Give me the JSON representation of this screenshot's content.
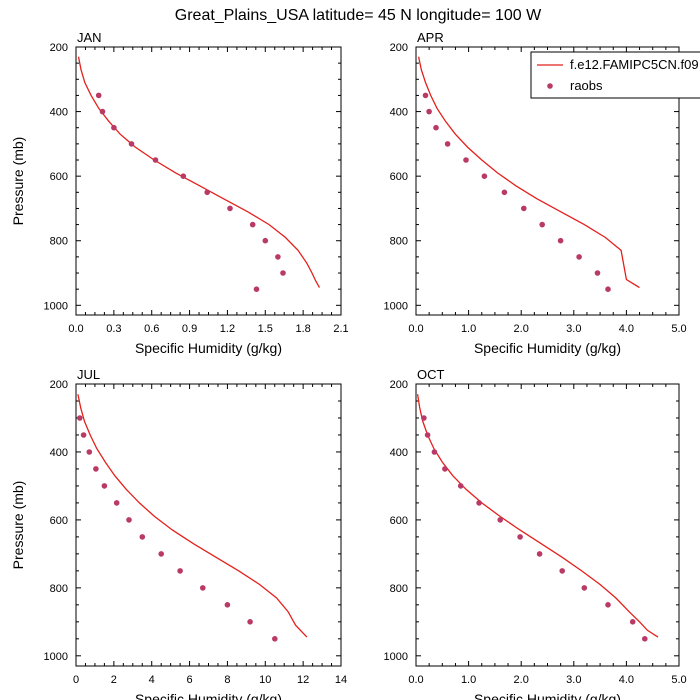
{
  "figure": {
    "title": "Great_Plains_USA  latitude= 45 N longitude= 100 W"
  },
  "legend": {
    "model_label": "f.e12.FAMIPC5CN.f09",
    "obs_label": "raobs",
    "placement": "top-right of APR panel"
  },
  "colors": {
    "model_line": "#e4201c",
    "obs_marker": "#b93a66",
    "axis": "#000000"
  },
  "chart_data": [
    {
      "type": "line",
      "panel": "JAN",
      "xlabel": "Specific Humidity (g/kg)",
      "ylabel": "Pressure (mb)",
      "xlim": [
        0,
        2.1
      ],
      "ylim": [
        1030,
        200
      ],
      "xticks": [
        "0.0",
        "0.3",
        "0.6",
        "0.9",
        "1.2",
        "1.5",
        "1.8",
        "2.1"
      ],
      "yticks": [
        "200",
        "400",
        "600",
        "800",
        "1000"
      ],
      "series": [
        {
          "name": "f.e12.FAMIPC5CN.f09",
          "kind": "line",
          "x": [
            0.02,
            0.04,
            0.07,
            0.12,
            0.18,
            0.26,
            0.35,
            0.47,
            0.62,
            0.79,
            0.98,
            1.17,
            1.36,
            1.53,
            1.66,
            1.76,
            1.83,
            1.87,
            1.9,
            1.93
          ],
          "y": [
            230,
            270,
            310,
            350,
            390,
            430,
            470,
            510,
            550,
            590,
            630,
            670,
            710,
            750,
            790,
            830,
            870,
            900,
            925,
            945
          ]
        },
        {
          "name": "raobs",
          "kind": "markers",
          "x": [
            0.18,
            0.21,
            0.3,
            0.44,
            0.63,
            0.85,
            1.04,
            1.22,
            1.4,
            1.5,
            1.6,
            1.64,
            1.43
          ],
          "y": [
            350,
            400,
            450,
            500,
            550,
            600,
            650,
            700,
            750,
            800,
            850,
            900,
            950
          ]
        }
      ]
    },
    {
      "type": "line",
      "panel": "APR",
      "xlabel": "Specific Humidity (g/kg)",
      "ylabel": "",
      "xlim": [
        0,
        5.0
      ],
      "ylim": [
        1030,
        200
      ],
      "xticks": [
        "0.0",
        "1.0",
        "2.0",
        "3.0",
        "4.0",
        "5.0"
      ],
      "yticks": [
        "200",
        "400",
        "600",
        "800",
        "1000"
      ],
      "series": [
        {
          "name": "f.e12.FAMIPC5CN.f09",
          "kind": "line",
          "x": [
            0.05,
            0.1,
            0.18,
            0.28,
            0.4,
            0.56,
            0.75,
            0.98,
            1.25,
            1.55,
            1.9,
            2.3,
            2.75,
            3.2,
            3.6,
            3.9,
            4.0,
            4.25
          ],
          "y": [
            230,
            270,
            310,
            350,
            390,
            430,
            470,
            510,
            550,
            590,
            630,
            670,
            710,
            750,
            790,
            830,
            920,
            945
          ]
        },
        {
          "name": "raobs",
          "kind": "markers",
          "x": [
            0.18,
            0.25,
            0.38,
            0.6,
            0.95,
            1.3,
            1.68,
            2.05,
            2.4,
            2.75,
            3.1,
            3.45,
            3.65
          ],
          "y": [
            350,
            400,
            450,
            500,
            550,
            600,
            650,
            700,
            750,
            800,
            850,
            900,
            950
          ]
        }
      ]
    },
    {
      "type": "line",
      "panel": "JUL",
      "xlabel": "Specific Humidity (g/kg)",
      "ylabel": "Pressure (mb)",
      "xlim": [
        0,
        14
      ],
      "ylim": [
        1030,
        200
      ],
      "xticks": [
        "0",
        "2",
        "4",
        "6",
        "8",
        "10",
        "12",
        "14"
      ],
      "yticks": [
        "200",
        "400",
        "600",
        "800",
        "1000"
      ],
      "series": [
        {
          "name": "f.e12.FAMIPC5CN.f09",
          "kind": "line",
          "x": [
            0.1,
            0.25,
            0.45,
            0.75,
            1.1,
            1.55,
            2.05,
            2.65,
            3.35,
            4.15,
            5.1,
            6.2,
            7.4,
            8.6,
            9.7,
            10.6,
            11.2,
            11.6,
            12.2
          ],
          "y": [
            230,
            270,
            310,
            350,
            390,
            430,
            470,
            510,
            550,
            590,
            630,
            670,
            710,
            750,
            790,
            830,
            870,
            910,
            945
          ]
        },
        {
          "name": "raobs",
          "kind": "markers",
          "x": [
            0.2,
            0.4,
            0.7,
            1.05,
            1.5,
            2.15,
            2.8,
            3.5,
            4.5,
            5.5,
            6.7,
            8.0,
            9.2,
            10.5
          ],
          "y": [
            300,
            350,
            400,
            450,
            500,
            550,
            600,
            650,
            700,
            750,
            800,
            850,
            900,
            950
          ]
        }
      ]
    },
    {
      "type": "line",
      "panel": "OCT",
      "xlabel": "Specific Humidity (g/kg)",
      "ylabel": "",
      "xlim": [
        0,
        5.0
      ],
      "ylim": [
        1030,
        200
      ],
      "xticks": [
        "0.0",
        "1.0",
        "2.0",
        "3.0",
        "4.0",
        "5.0"
      ],
      "yticks": [
        "200",
        "400",
        "600",
        "800",
        "1000"
      ],
      "series": [
        {
          "name": "f.e12.FAMIPC5CN.f09",
          "kind": "line",
          "x": [
            0.03,
            0.07,
            0.13,
            0.22,
            0.34,
            0.5,
            0.7,
            0.95,
            1.25,
            1.6,
            1.98,
            2.38,
            2.78,
            3.15,
            3.5,
            3.8,
            4.05,
            4.25,
            4.4,
            4.6
          ],
          "y": [
            230,
            270,
            310,
            350,
            390,
            430,
            470,
            510,
            550,
            590,
            630,
            670,
            710,
            750,
            790,
            830,
            870,
            900,
            925,
            945
          ]
        },
        {
          "name": "raobs",
          "kind": "markers",
          "x": [
            0.15,
            0.22,
            0.35,
            0.55,
            0.85,
            1.2,
            1.6,
            1.98,
            2.35,
            2.78,
            3.2,
            3.65,
            4.12,
            4.35
          ],
          "y": [
            300,
            350,
            400,
            450,
            500,
            550,
            600,
            650,
            700,
            750,
            800,
            850,
            900,
            950
          ]
        }
      ]
    }
  ]
}
